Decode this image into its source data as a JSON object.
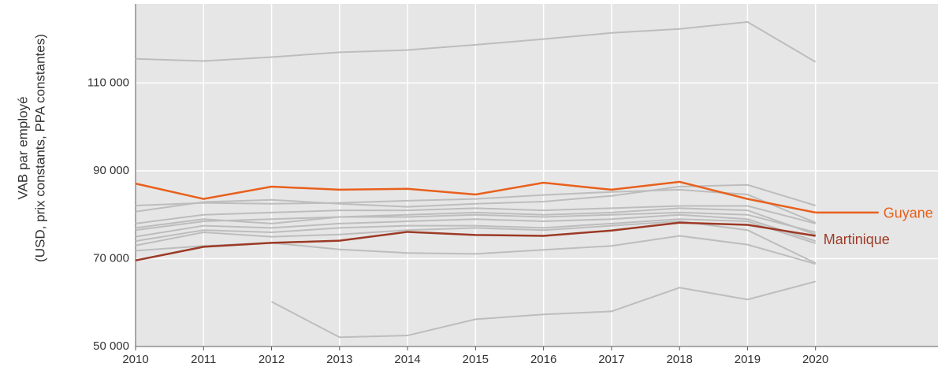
{
  "chart_data": {
    "type": "line",
    "ylabel": [
      "VAB par employé",
      "(USD, prix constants, PPA constantes)"
    ],
    "x": [
      2010,
      2011,
      2012,
      2013,
      2014,
      2015,
      2016,
      2017,
      2018,
      2019,
      2020
    ],
    "xlim": [
      2010,
      2021.8
    ],
    "xticks": [
      2010,
      2011,
      2012,
      2013,
      2014,
      2015,
      2016,
      2017,
      2018,
      2019,
      2020
    ],
    "ylim": [
      50000,
      128000
    ],
    "yticks": [
      {
        "value": 50000,
        "label": "50 000"
      },
      {
        "value": 70000,
        "label": "70 000"
      },
      {
        "value": 90000,
        "label": "90 000"
      },
      {
        "value": 110000,
        "label": "110 000"
      }
    ],
    "grid": true,
    "series": [
      {
        "color": "#bdbdbd",
        "values": [
          115500,
          115000,
          115900,
          117000,
          117500,
          118700,
          120000,
          121400,
          122300,
          123900,
          114800
        ]
      },
      {
        "color": "#bdbdbd",
        "values": [
          null,
          null,
          60200,
          52100,
          52500,
          56200,
          57300,
          58000,
          63400,
          60700,
          64800
        ]
      },
      {
        "color": "#bdbdbd",
        "values": [
          71800,
          72900,
          73600,
          72100,
          71300,
          71100,
          72000,
          72900,
          75200,
          73200,
          68800
        ]
      },
      {
        "color": "#bdbdbd",
        "values": [
          80700,
          82900,
          83400,
          82500,
          81800,
          82500,
          83000,
          84300,
          86400,
          86800,
          82100
        ]
      },
      {
        "color": "#bdbdbd",
        "values": [
          82100,
          82700,
          82500,
          82700,
          83200,
          83600,
          84500,
          85200,
          85700,
          84600,
          78200
        ]
      },
      {
        "color": "#bdbdbd",
        "values": [
          78000,
          80000,
          80500,
          81000,
          81000,
          81500,
          81000,
          81500,
          82000,
          82000,
          78000
        ]
      },
      {
        "color": "#bdbdbd",
        "values": [
          76500,
          78500,
          79000,
          79500,
          79500,
          80000,
          79500,
          80000,
          80500,
          80000,
          76000
        ]
      },
      {
        "color": "#bdbdbd",
        "values": [
          75000,
          77500,
          77000,
          78000,
          78500,
          79000,
          78500,
          79000,
          80000,
          79000,
          74000
        ]
      },
      {
        "color": "#bdbdbd",
        "values": [
          74000,
          76500,
          76000,
          77000,
          77500,
          77500,
          77000,
          78000,
          79000,
          78500,
          73500
        ]
      },
      {
        "color": "#bdbdbd",
        "values": [
          73000,
          76000,
          75000,
          75500,
          76500,
          77000,
          76500,
          77500,
          78500,
          76500,
          69000
        ]
      },
      {
        "color": "#bdbdbd",
        "values": [
          77000,
          79000,
          78000,
          79500,
          80000,
          80500,
          80000,
          80500,
          81500,
          81000,
          75500
        ]
      },
      {
        "name": "Guyane",
        "color": "#e8601c",
        "values": [
          87100,
          83600,
          86400,
          85700,
          85900,
          84600,
          87300,
          85700,
          87500,
          83600,
          80500
        ]
      },
      {
        "name": "Martinique",
        "color": "#9c3a26",
        "values": [
          69600,
          72700,
          73600,
          74100,
          76100,
          75400,
          75200,
          76400,
          78200,
          77700,
          75200
        ]
      }
    ]
  }
}
